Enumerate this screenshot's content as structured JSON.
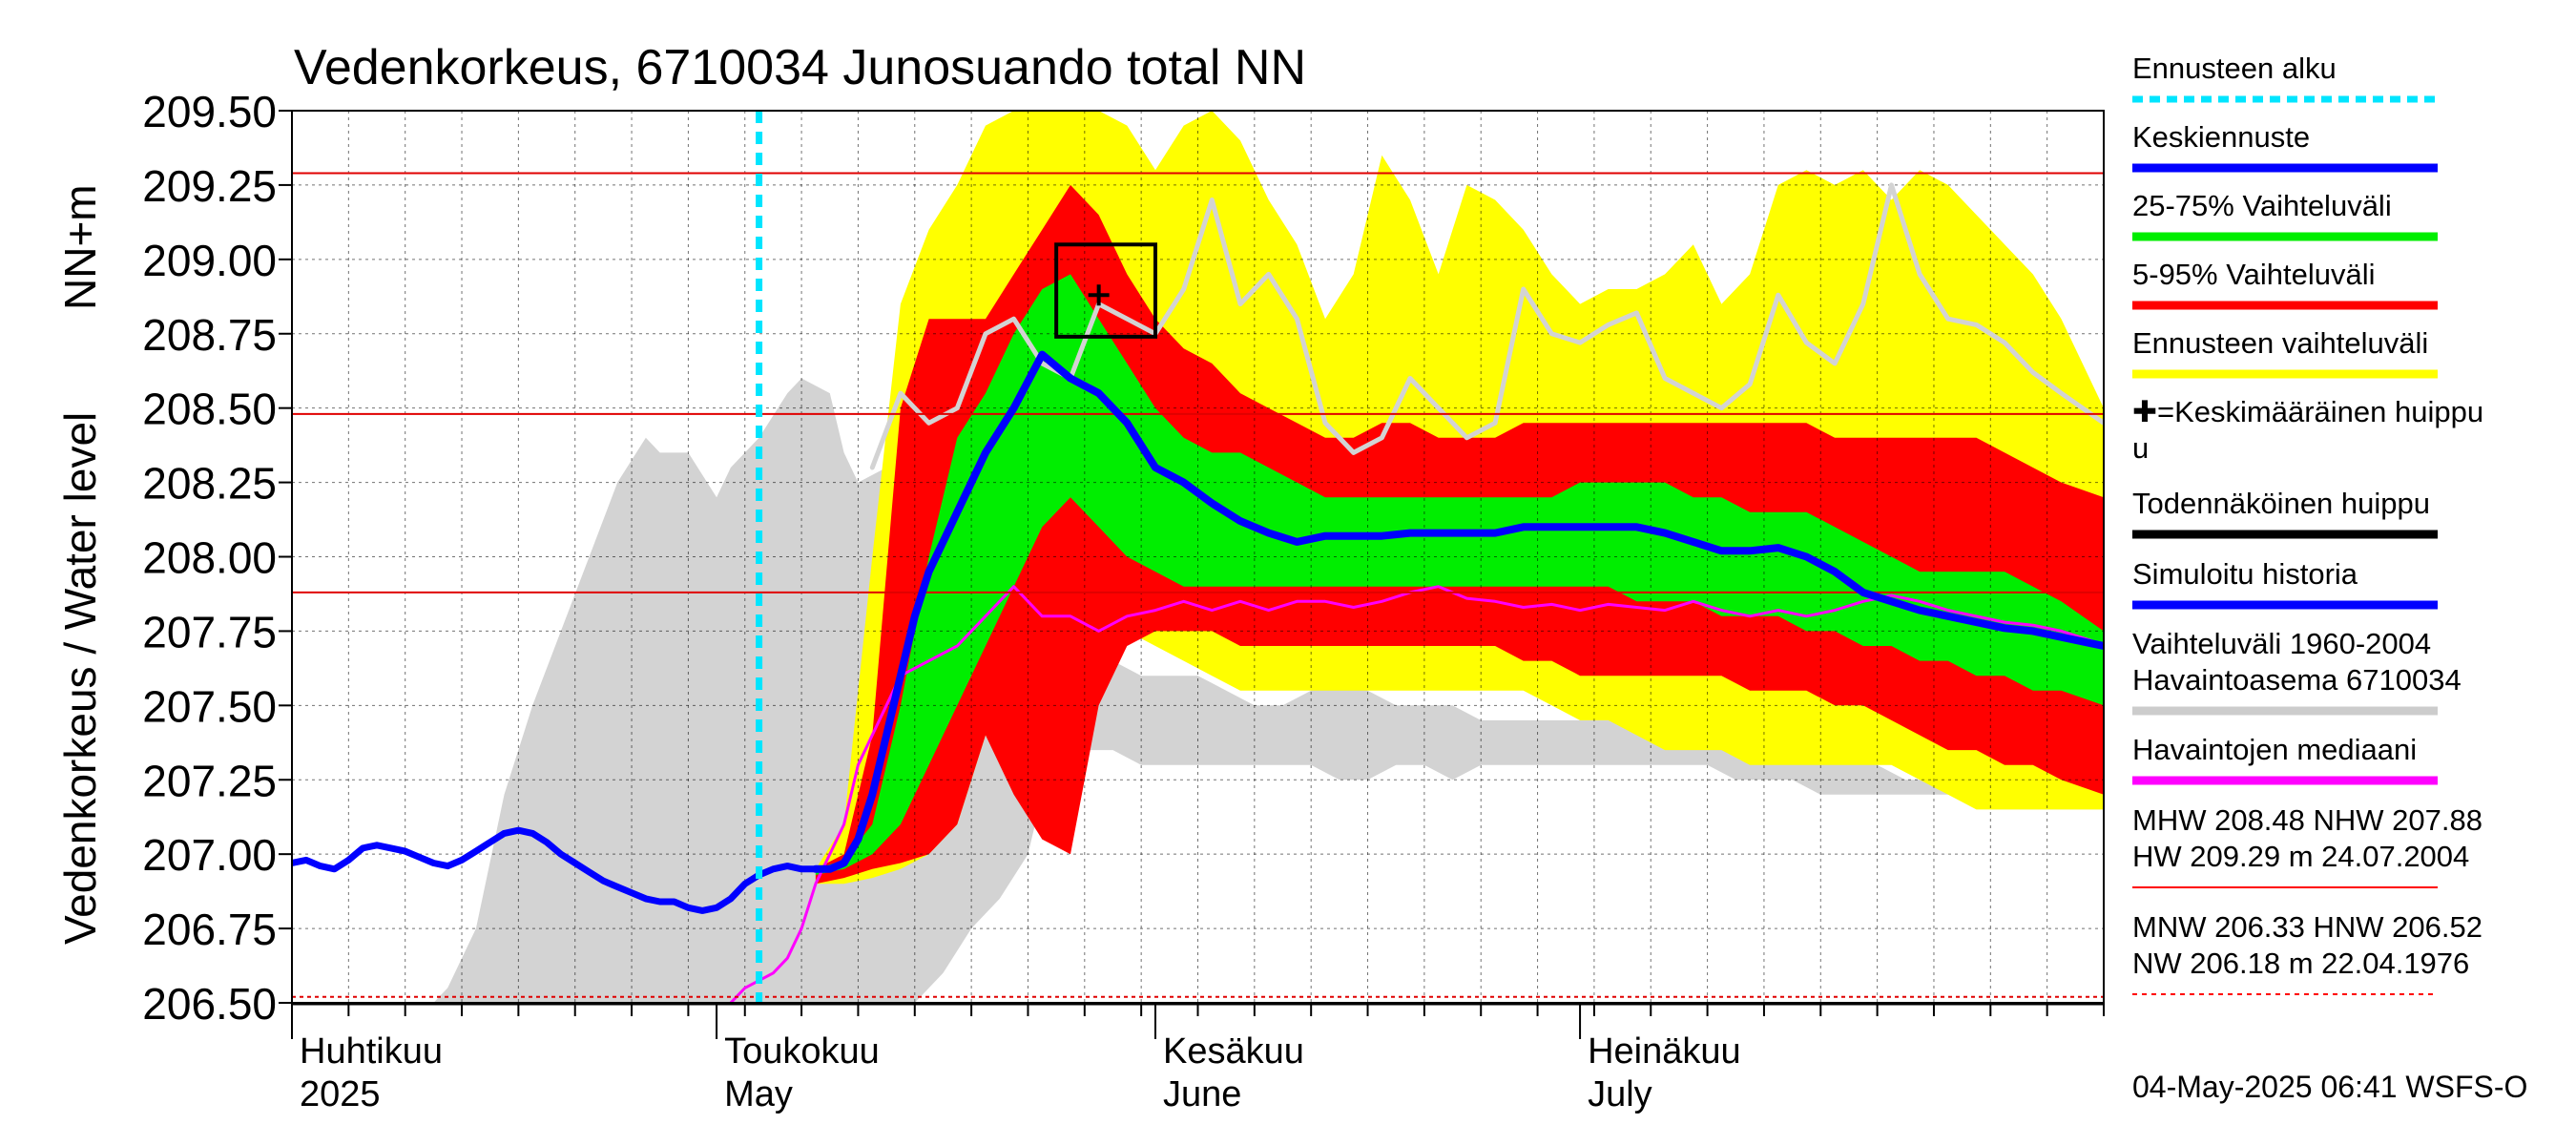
{
  "chart_data": {
    "type": "area",
    "title": "Vedenkorkeus, 6710034 Junosuando total NN",
    "ylabel_lines": [
      "Vedenkorkeus / Water level",
      "NN+m"
    ],
    "ylim": [
      206.5,
      209.5
    ],
    "yticks": [
      "209.50",
      "209.25",
      "209.00",
      "208.75",
      "208.50",
      "208.25",
      "208.00",
      "207.75",
      "207.50",
      "207.25",
      "207.00",
      "206.75",
      "206.50"
    ],
    "xlim_days": [
      0,
      128
    ],
    "month_labels": [
      {
        "day": 0,
        "line1": "Huhtikuu",
        "line2": "2025"
      },
      {
        "day": 30,
        "line1": "Toukokuu",
        "line2": "May"
      },
      {
        "day": 61,
        "line1": "Kesäkuu",
        "line2": "June"
      },
      {
        "day": 91,
        "line1": "Heinäkuu",
        "line2": "July"
      }
    ],
    "forecast_start_day": 33,
    "reference_lines": {
      "MHW": 208.48,
      "NHW": 207.88,
      "HW": 209.29,
      "MNW": 206.33,
      "HNW": 206.52,
      "NW": 206.18
    },
    "peak_marker": {
      "day": 57,
      "value": 208.88
    },
    "peak_box": {
      "day_from": 54,
      "day_to": 61,
      "value_from": 208.74,
      "value_to": 209.05
    },
    "legend": [
      {
        "label": "Ennusteen alku",
        "color": "#00e5ff",
        "style": "dashed"
      },
      {
        "label": "Keskiennuste",
        "color": "#0000ff",
        "style": "solid"
      },
      {
        "label": "25-75% Vaihteluväli",
        "color": "#00ee00",
        "style": "solid"
      },
      {
        "label": "5-95% Vaihteluväli",
        "color": "#ff0000",
        "style": "solid"
      },
      {
        "label": "Ennusteen vaihteluväli",
        "color": "#ffff00",
        "style": "solid"
      },
      {
        "label": "✚=Keskimääräinen huippu",
        "color": "",
        "style": "none"
      },
      {
        "label": "Todennäköinen huippu",
        "color": "#000000",
        "style": "solid"
      },
      {
        "label": "Simuloitu historia",
        "color": "#0000ff",
        "style": "solid"
      },
      {
        "label": "Vaihteluväli 1960-2004\n Havaintoasema 6710034",
        "color": "#cccccc",
        "style": "solid"
      },
      {
        "label": "Havaintojen mediaani",
        "color": "#ff00ff",
        "style": "solid"
      },
      {
        "label": "MHW 208.48 NHW 207.88\nHW 209.29 m 24.07.2004",
        "color": "#ff0000",
        "style": "solid"
      },
      {
        "label": "MNW 206.33 HNW 206.52\nNW 206.18 m 22.04.1976",
        "color": "#ff0000",
        "style": "dotted"
      }
    ],
    "footer": "04-May-2025 06:41 WSFS-O",
    "series": {
      "hist_range": {
        "x": [
          0,
          10,
          11,
          13,
          15,
          17,
          19,
          21,
          23,
          25,
          26,
          28,
          30,
          31,
          33,
          35,
          36,
          38,
          39,
          40,
          42,
          44,
          46,
          48,
          50,
          52,
          53,
          54,
          56,
          58,
          60,
          62,
          64,
          66,
          68,
          70,
          72,
          74,
          76,
          78,
          80,
          82,
          84,
          86,
          88,
          90,
          92,
          94,
          96,
          98,
          100,
          102,
          104,
          106,
          108,
          110,
          112,
          114,
          116,
          118,
          120,
          122,
          124,
          126,
          128
        ],
        "high": [
          206.5,
          206.5,
          206.55,
          206.75,
          207.2,
          207.5,
          207.75,
          208.0,
          208.25,
          208.4,
          208.35,
          208.35,
          208.2,
          208.3,
          208.4,
          208.55,
          208.6,
          208.55,
          208.35,
          208.25,
          208.3,
          208.5,
          208.6,
          208.7,
          208.75,
          208.8,
          208.75,
          208.55,
          207.8,
          207.65,
          207.6,
          207.6,
          207.6,
          207.55,
          207.5,
          207.5,
          207.55,
          207.6,
          207.55,
          207.5,
          207.5,
          207.5,
          207.45,
          207.45,
          207.45,
          207.45,
          207.45,
          207.45,
          207.45,
          207.45,
          207.45,
          207.45,
          207.45,
          207.45,
          207.4,
          207.35,
          207.3,
          207.25,
          207.25,
          207.25,
          207.25,
          207.2,
          207.2,
          207.2,
          207.15
        ],
        "low": [
          206.5,
          206.5,
          206.5,
          206.5,
          206.5,
          206.5,
          206.5,
          206.5,
          206.5,
          206.5,
          206.5,
          206.5,
          206.5,
          206.5,
          206.5,
          206.5,
          206.5,
          206.5,
          206.5,
          206.5,
          206.5,
          206.5,
          206.6,
          206.75,
          206.85,
          207.0,
          207.2,
          207.3,
          207.35,
          207.35,
          207.3,
          207.3,
          207.3,
          207.3,
          207.3,
          207.3,
          207.3,
          207.25,
          207.25,
          207.3,
          207.3,
          207.25,
          207.3,
          207.3,
          207.3,
          207.3,
          207.3,
          207.3,
          207.3,
          207.3,
          207.3,
          207.25,
          207.25,
          207.25,
          207.2,
          207.2,
          207.2,
          207.2,
          207.2,
          207.2,
          207.15,
          207.15,
          207.15,
          207.15,
          207.15
        ]
      },
      "forecast_x": [
        37,
        39,
        41,
        43,
        45,
        47,
        49,
        51,
        53,
        55,
        57,
        59,
        61,
        63,
        65,
        67,
        69,
        71,
        73,
        75,
        77,
        79,
        81,
        83,
        85,
        87,
        89,
        91,
        93,
        95,
        97,
        99,
        101,
        103,
        105,
        107,
        109,
        111,
        113,
        115,
        117,
        119,
        121,
        123,
        125,
        128
      ],
      "yellow_high": [
        206.95,
        207.1,
        208.0,
        208.85,
        209.1,
        209.25,
        209.45,
        209.5,
        209.5,
        209.5,
        209.5,
        209.45,
        209.3,
        209.45,
        209.5,
        209.4,
        209.2,
        209.05,
        208.8,
        208.95,
        209.35,
        209.2,
        208.95,
        209.25,
        209.2,
        209.1,
        208.95,
        208.85,
        208.9,
        208.9,
        208.95,
        209.05,
        208.85,
        208.95,
        209.25,
        209.3,
        209.25,
        209.3,
        209.2,
        209.3,
        209.25,
        209.15,
        209.05,
        208.95,
        208.8,
        208.5
      ],
      "red_high": [
        206.95,
        207.0,
        207.4,
        208.5,
        208.8,
        208.8,
        208.8,
        208.95,
        209.1,
        209.25,
        209.15,
        208.95,
        208.8,
        208.7,
        208.65,
        208.55,
        208.5,
        208.45,
        208.4,
        208.4,
        208.45,
        208.45,
        208.4,
        208.4,
        208.4,
        208.45,
        208.45,
        208.45,
        208.45,
        208.45,
        208.45,
        208.45,
        208.45,
        208.45,
        208.45,
        208.45,
        208.4,
        208.4,
        208.4,
        208.4,
        208.4,
        208.4,
        208.35,
        208.3,
        208.25,
        208.2
      ],
      "green_high": [
        206.95,
        206.98,
        207.1,
        207.5,
        208.0,
        208.4,
        208.55,
        208.75,
        208.9,
        208.95,
        208.8,
        208.65,
        208.5,
        208.4,
        208.35,
        208.35,
        208.3,
        208.25,
        208.2,
        208.2,
        208.2,
        208.2,
        208.2,
        208.2,
        208.2,
        208.2,
        208.2,
        208.25,
        208.25,
        208.25,
        208.25,
        208.2,
        208.2,
        208.15,
        208.15,
        208.15,
        208.1,
        208.05,
        208.0,
        207.95,
        207.95,
        207.95,
        207.95,
        207.9,
        207.85,
        207.75
      ],
      "green_low": [
        206.93,
        206.95,
        207.0,
        207.1,
        207.3,
        207.5,
        207.7,
        207.9,
        208.1,
        208.2,
        208.1,
        208.0,
        207.95,
        207.9,
        207.9,
        207.9,
        207.9,
        207.9,
        207.9,
        207.9,
        207.9,
        207.9,
        207.9,
        207.9,
        207.9,
        207.9,
        207.9,
        207.9,
        207.9,
        207.85,
        207.85,
        207.85,
        207.8,
        207.8,
        207.8,
        207.75,
        207.75,
        207.7,
        207.7,
        207.65,
        207.65,
        207.6,
        207.6,
        207.55,
        207.55,
        207.5
      ],
      "red_low": [
        206.9,
        206.92,
        206.95,
        206.97,
        207.0,
        207.1,
        207.4,
        207.2,
        207.05,
        207.0,
        207.5,
        207.7,
        207.75,
        207.75,
        207.75,
        207.7,
        207.7,
        207.7,
        207.7,
        207.7,
        207.7,
        207.7,
        207.7,
        207.7,
        207.7,
        207.65,
        207.65,
        207.6,
        207.6,
        207.6,
        207.6,
        207.6,
        207.6,
        207.55,
        207.55,
        207.55,
        207.5,
        207.5,
        207.45,
        207.4,
        207.35,
        207.35,
        207.3,
        207.3,
        207.25,
        207.2
      ],
      "yellow_low": [
        206.9,
        206.9,
        206.92,
        206.95,
        207.0,
        207.1,
        207.4,
        207.3,
        207.2,
        207.45,
        207.75,
        207.75,
        207.7,
        207.65,
        207.6,
        207.55,
        207.55,
        207.55,
        207.55,
        207.55,
        207.55,
        207.55,
        207.55,
        207.55,
        207.55,
        207.55,
        207.5,
        207.45,
        207.45,
        207.4,
        207.35,
        207.35,
        207.35,
        207.3,
        207.3,
        207.3,
        207.3,
        207.3,
        207.3,
        207.25,
        207.2,
        207.15,
        207.15,
        207.15,
        207.15,
        207.15
      ],
      "mean_forecast": {
        "x": [
          37,
          38,
          39,
          40,
          41,
          42,
          43,
          44,
          45,
          47,
          49,
          51,
          53,
          55,
          57,
          59,
          61,
          63,
          65,
          67,
          69,
          71,
          73,
          75,
          77,
          79,
          81,
          83,
          85,
          87,
          89,
          91,
          93,
          95,
          97,
          99,
          101,
          103,
          105,
          107,
          109,
          111,
          113,
          115,
          117,
          119,
          121,
          123,
          125,
          127,
          128
        ],
        "y": [
          206.95,
          206.95,
          206.97,
          207.05,
          207.2,
          207.4,
          207.6,
          207.8,
          207.95,
          208.15,
          208.35,
          208.5,
          208.68,
          208.6,
          208.55,
          208.45,
          208.3,
          208.25,
          208.18,
          208.12,
          208.08,
          208.05,
          208.07,
          208.07,
          208.07,
          208.08,
          208.08,
          208.08,
          208.08,
          208.1,
          208.1,
          208.1,
          208.1,
          208.1,
          208.08,
          208.05,
          208.02,
          208.02,
          208.03,
          208.0,
          207.95,
          207.88,
          207.85,
          207.82,
          207.8,
          207.78,
          207.76,
          207.75,
          207.73,
          207.71,
          207.7
        ]
      },
      "simulated_history": {
        "x": [
          0,
          1,
          2,
          3,
          4,
          5,
          6,
          7,
          8,
          9,
          10,
          11,
          12,
          13,
          14,
          15,
          16,
          17,
          18,
          19,
          20,
          21,
          22,
          23,
          24,
          25,
          26,
          27,
          28,
          29,
          30,
          31,
          32,
          33,
          34,
          35,
          36,
          37
        ],
        "y": [
          206.97,
          206.98,
          206.96,
          206.95,
          206.98,
          207.02,
          207.03,
          207.02,
          207.01,
          206.99,
          206.97,
          206.96,
          206.98,
          207.01,
          207.04,
          207.07,
          207.08,
          207.07,
          207.04,
          207.0,
          206.97,
          206.94,
          206.91,
          206.89,
          206.87,
          206.85,
          206.84,
          206.84,
          206.82,
          206.81,
          206.82,
          206.85,
          206.9,
          206.93,
          206.95,
          206.96,
          206.95,
          206.95
        ]
      },
      "gray_scenario": {
        "x": [
          41,
          43,
          45,
          47,
          49,
          51,
          53,
          55,
          57,
          59,
          61,
          63,
          65,
          67,
          69,
          71,
          73,
          75,
          77,
          79,
          81,
          83,
          85,
          87,
          89,
          91,
          93,
          95,
          97,
          99,
          101,
          103,
          105,
          107,
          109,
          111,
          113,
          115,
          117,
          119,
          121,
          123,
          125,
          128
        ],
        "y": [
          208.3,
          208.55,
          208.45,
          208.5,
          208.75,
          208.8,
          208.65,
          208.6,
          208.85,
          208.8,
          208.75,
          208.9,
          209.2,
          208.85,
          208.95,
          208.8,
          208.45,
          208.35,
          208.4,
          208.6,
          208.5,
          208.4,
          208.45,
          208.9,
          208.75,
          208.72,
          208.78,
          208.82,
          208.6,
          208.55,
          208.5,
          208.58,
          208.88,
          208.72,
          208.65,
          208.85,
          209.25,
          208.95,
          208.8,
          208.78,
          208.72,
          208.62,
          208.55,
          208.45
        ]
      },
      "observed_median": {
        "x": [
          31,
          32,
          34,
          35,
          36,
          37,
          38,
          39,
          40,
          42,
          43,
          45,
          47,
          49,
          51,
          53,
          55,
          57,
          59,
          61,
          63,
          65,
          67,
          69,
          71,
          73,
          75,
          77,
          79,
          81,
          83,
          85,
          87,
          89,
          91,
          93,
          95,
          97,
          99,
          101,
          103,
          105,
          107,
          109,
          111,
          113,
          115,
          117,
          119,
          121,
          123,
          125,
          127,
          128
        ],
        "y": [
          206.5,
          206.55,
          206.6,
          206.65,
          206.75,
          206.9,
          207.0,
          207.1,
          207.3,
          207.5,
          207.6,
          207.65,
          207.7,
          207.8,
          207.9,
          207.8,
          207.8,
          207.75,
          207.8,
          207.82,
          207.85,
          207.82,
          207.85,
          207.82,
          207.85,
          207.85,
          207.83,
          207.85,
          207.88,
          207.9,
          207.86,
          207.85,
          207.83,
          207.84,
          207.82,
          207.84,
          207.83,
          207.82,
          207.85,
          207.82,
          207.8,
          207.82,
          207.8,
          207.82,
          207.85,
          207.87,
          207.85,
          207.82,
          207.8,
          207.78,
          207.77,
          207.75,
          207.72,
          207.7
        ]
      }
    }
  }
}
